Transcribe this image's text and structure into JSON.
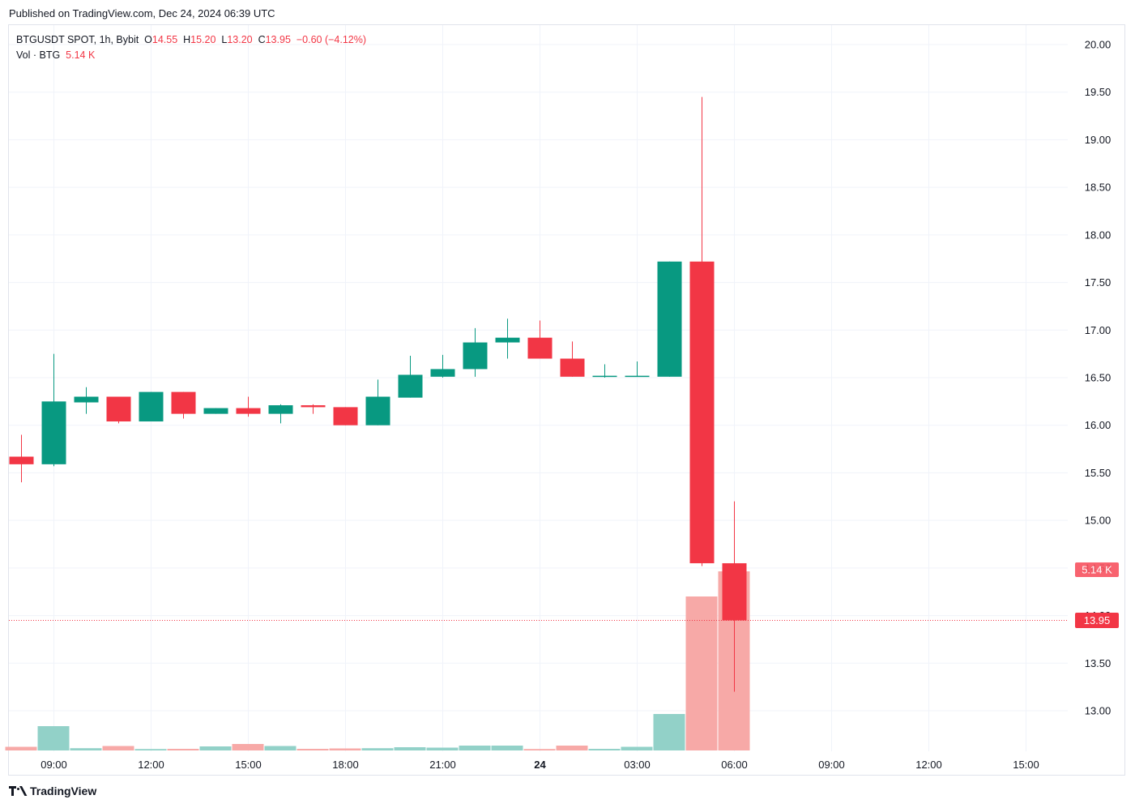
{
  "published": "Published on TradingView.com, Dec 24, 2024 06:39 UTC",
  "legend": {
    "symbol": "BTGUSDT SPOT, 1h, Bybit",
    "o_label": "O",
    "o_value": "14.55",
    "h_label": "H",
    "h_value": "15.20",
    "l_label": "L",
    "l_value": "13.20",
    "c_label": "C",
    "c_value": "13.95",
    "change": "−0.60 (−4.12%)",
    "vol_label": "Vol · BTG",
    "vol_value": "5.14 K"
  },
  "footer": {
    "brand": "TradingView",
    "logo_icon": "tradingview-logo-icon"
  },
  "colors": {
    "up": "#089981",
    "down": "#f23645",
    "vol_up": "#92d1c8",
    "vol_down": "#f7a9a7",
    "grid": "#f0f3fa",
    "axis_text": "#131722"
  },
  "chart_data": {
    "type": "candlestick",
    "interval": "1h",
    "y_ticks": [
      "13.00",
      "13.50",
      "14.00",
      "14.50",
      "15.00",
      "15.50",
      "16.00",
      "16.50",
      "17.00",
      "17.50",
      "18.00",
      "18.50",
      "19.00",
      "19.50",
      "20.00"
    ],
    "ylim": [
      12.58,
      20.22
    ],
    "x_ticks": [
      {
        "label": "09:00",
        "i": 1,
        "bold": false
      },
      {
        "label": "12:00",
        "i": 4,
        "bold": false
      },
      {
        "label": "15:00",
        "i": 7,
        "bold": false
      },
      {
        "label": "18:00",
        "i": 10,
        "bold": false
      },
      {
        "label": "21:00",
        "i": 13,
        "bold": false
      },
      {
        "label": "24",
        "i": 16,
        "bold": true
      },
      {
        "label": "03:00",
        "i": 19,
        "bold": false
      },
      {
        "label": "06:00",
        "i": 22,
        "bold": false
      },
      {
        "label": "09:00",
        "i": 25,
        "bold": false
      },
      {
        "label": "12:00",
        "i": 28,
        "bold": false
      },
      {
        "label": "15:00",
        "i": 31,
        "bold": false
      }
    ],
    "candles": [
      {
        "o": 15.67,
        "h": 15.9,
        "l": 15.4,
        "c": 15.59,
        "v": 0.45
      },
      {
        "o": 15.59,
        "h": 16.75,
        "l": 15.57,
        "c": 16.25,
        "v": 3.0
      },
      {
        "o": 16.24,
        "h": 16.4,
        "l": 16.12,
        "c": 16.3,
        "v": 0.28
      },
      {
        "o": 16.3,
        "h": 16.3,
        "l": 16.02,
        "c": 16.04,
        "v": 0.55
      },
      {
        "o": 16.04,
        "h": 16.35,
        "l": 16.04,
        "c": 16.35,
        "v": 0.18
      },
      {
        "o": 16.35,
        "h": 16.35,
        "l": 16.07,
        "c": 16.12,
        "v": 0.2
      },
      {
        "o": 16.12,
        "h": 16.18,
        "l": 16.12,
        "c": 16.18,
        "v": 0.5
      },
      {
        "o": 16.18,
        "h": 16.3,
        "l": 16.09,
        "c": 16.12,
        "v": 0.8
      },
      {
        "o": 16.12,
        "h": 16.22,
        "l": 16.02,
        "c": 16.21,
        "v": 0.55
      },
      {
        "o": 16.21,
        "h": 16.22,
        "l": 16.12,
        "c": 16.19,
        "v": 0.2
      },
      {
        "o": 16.19,
        "h": 16.19,
        "l": 16.0,
        "c": 16.0,
        "v": 0.25
      },
      {
        "o": 16.0,
        "h": 16.48,
        "l": 16.0,
        "c": 16.3,
        "v": 0.28
      },
      {
        "o": 16.29,
        "h": 16.73,
        "l": 16.29,
        "c": 16.53,
        "v": 0.4
      },
      {
        "o": 16.51,
        "h": 16.74,
        "l": 16.5,
        "c": 16.59,
        "v": 0.35
      },
      {
        "o": 16.59,
        "h": 17.02,
        "l": 16.51,
        "c": 16.87,
        "v": 0.6
      },
      {
        "o": 16.87,
        "h": 17.12,
        "l": 16.7,
        "c": 16.92,
        "v": 0.6
      },
      {
        "o": 16.92,
        "h": 17.1,
        "l": 16.7,
        "c": 16.7,
        "v": 0.18
      },
      {
        "o": 16.7,
        "h": 16.88,
        "l": 16.51,
        "c": 16.51,
        "v": 0.6
      },
      {
        "o": 16.51,
        "h": 16.64,
        "l": 16.5,
        "c": 16.52,
        "v": 0.2
      },
      {
        "o": 16.51,
        "h": 16.67,
        "l": 16.51,
        "c": 16.52,
        "v": 0.45
      },
      {
        "o": 16.51,
        "h": 17.72,
        "l": 16.51,
        "c": 17.72,
        "v": 4.5
      },
      {
        "o": 17.72,
        "h": 19.45,
        "l": 14.52,
        "c": 14.55,
        "v": 19.0
      },
      {
        "o": 14.55,
        "h": 15.2,
        "l": 13.2,
        "c": 13.95,
        "v": 22.1
      }
    ],
    "last_price_label": "13.95",
    "volume_label": "5.14 K"
  }
}
